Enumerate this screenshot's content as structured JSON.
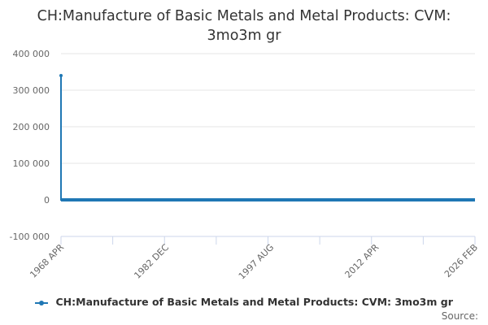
{
  "chart_data": {
    "type": "line",
    "title_lines": [
      "CH:Manufacture of Basic Metals and Metal Products: CVM:",
      "3mo3m gr"
    ],
    "y_ticks": [
      "400 000",
      "300 000",
      "200 000",
      "100 000",
      "0",
      "-100 000"
    ],
    "y_tick_values": [
      400000,
      300000,
      200000,
      100000,
      0,
      -100000
    ],
    "ylim": [
      -100000,
      400000
    ],
    "x_tick_labels": [
      "1968 APR",
      "1982 DEC",
      "1997 AUG",
      "2012 APR",
      "2026 FEB"
    ],
    "x_tick_values": [
      1968.25,
      1982.917,
      1997.583,
      2012.25,
      2026.083
    ],
    "xlim": [
      1968.25,
      2026.083
    ],
    "grid": "horizontal",
    "legend_position": "bottom-center",
    "series": [
      {
        "name": "CH:Manufacture of Basic Metals and Metal Products: CVM: 3mo3m gr",
        "color": "#1f77b4",
        "x_start": 1968.25,
        "x_end": 2026.083,
        "values": [
          340000,
          0
        ]
      }
    ],
    "source_label": "Source:"
  }
}
